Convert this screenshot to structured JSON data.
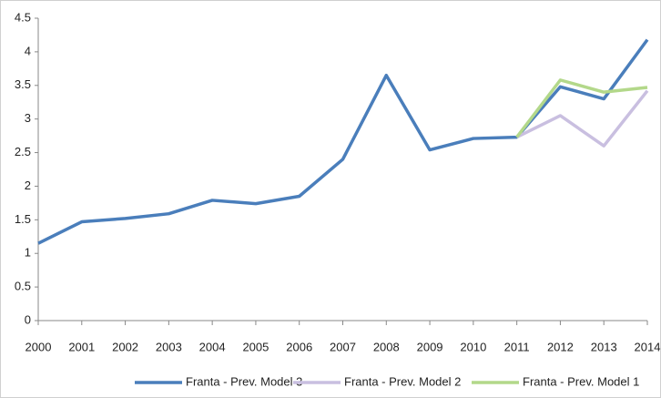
{
  "chart_data": {
    "type": "line",
    "categories": [
      "2000",
      "2001",
      "2002",
      "2003",
      "2004",
      "2005",
      "2006",
      "2007",
      "2008",
      "2009",
      "2010",
      "2011",
      "2012",
      "2013",
      "2014"
    ],
    "series": [
      {
        "name": "Franta  - Prev. Model 3",
        "color": "#4a7ebb",
        "values": [
          1.15,
          1.47,
          1.52,
          1.59,
          1.79,
          1.74,
          1.85,
          2.4,
          3.65,
          2.54,
          2.71,
          2.73,
          3.48,
          3.3,
          4.18
        ]
      },
      {
        "name": "Franta - Prev. Model 2",
        "color": "#c9bfe0",
        "values": [
          null,
          null,
          null,
          null,
          null,
          null,
          null,
          null,
          null,
          null,
          null,
          2.73,
          3.05,
          2.6,
          3.42
        ]
      },
      {
        "name": "Franta - Prev. Model 1",
        "color": "#b3d88a",
        "values": [
          null,
          null,
          null,
          null,
          null,
          null,
          null,
          null,
          null,
          null,
          null,
          2.73,
          3.58,
          3.4,
          3.47
        ]
      }
    ],
    "ylim": [
      0,
      4.5
    ],
    "yticks": [
      0,
      0.5,
      1,
      1.5,
      2,
      2.5,
      3,
      3.5,
      4,
      4.5
    ],
    "grid": false,
    "legend": "bottom"
  }
}
